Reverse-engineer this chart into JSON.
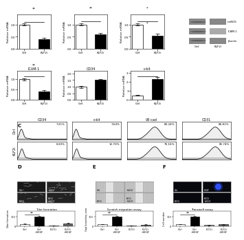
{
  "bar_charts_top": [
    {
      "ylabel": "Relative mRNA",
      "categories": [
        "Ctrl",
        "KLF2i"
      ],
      "values": [
        1.0,
        0.4
      ],
      "errors": [
        0.05,
        0.05
      ],
      "colors": [
        "white",
        "black"
      ],
      "sig": "**",
      "ylim": [
        0,
        1.4
      ]
    },
    {
      "ylabel": "Relative mRNA",
      "categories": [
        "Ctrl",
        "KLF2i"
      ],
      "values": [
        1.0,
        0.6
      ],
      "errors": [
        0.05,
        0.06
      ],
      "colors": [
        "white",
        "black"
      ],
      "sig": "**",
      "ylim": [
        0,
        1.4
      ]
    },
    {
      "ylabel": "Relative mRNA",
      "categories": [
        "Ctrl",
        "KLF2i"
      ],
      "values": [
        1.0,
        0.55
      ],
      "errors": [
        0.05,
        0.06
      ],
      "colors": [
        "white",
        "black"
      ],
      "sig": "*",
      "ylim": [
        0,
        1.4
      ]
    }
  ],
  "bar_charts_mid": [
    {
      "title": "ICAM-1",
      "ylabel": "Relative mRNA",
      "categories": [
        "Ctrl",
        "KLF2i"
      ],
      "values": [
        1.0,
        0.4
      ],
      "errors": [
        0.05,
        0.06
      ],
      "colors": [
        "white",
        "black"
      ],
      "sig": "**",
      "ylim": [
        0,
        1.4
      ]
    },
    {
      "title": "CD34",
      "ylabel": "Relative mRNA",
      "categories": [
        "Ctrl",
        "KLF2i"
      ],
      "values": [
        1.0,
        1.5
      ],
      "errors": [
        0.08,
        0.1
      ],
      "colors": [
        "white",
        "black"
      ],
      "sig": "",
      "ylim": [
        0,
        2.2
      ]
    },
    {
      "title": "c-kit",
      "ylabel": "Relative mRNA",
      "categories": [
        "Ctrl",
        "KLF2i"
      ],
      "values": [
        0.5,
        2.3
      ],
      "errors": [
        0.06,
        0.2
      ],
      "colors": [
        "white",
        "black"
      ],
      "sig": "*",
      "ylim": [
        0,
        3.2
      ]
    }
  ],
  "flow_labels_ctrl": [
    "7.21%",
    "7.64%",
    "80.24%",
    "85.81%"
  ],
  "flow_labels_klf2i": [
    "8.20%",
    "12.70%",
    "75.16%",
    "81.74%"
  ],
  "flow_markers": [
    "CD34",
    "c-kit",
    "VE-cad",
    "CD31"
  ],
  "flow_row_labels": [
    "Ctrl",
    "KLF2i"
  ],
  "western_labels": [
    "t-eNOS",
    "ICAM-1",
    "β-actin"
  ],
  "western_col_labels": [
    "Ctrl",
    "KLF2i"
  ],
  "tube_bars": {
    "title": "Tube formation",
    "ylabel": "Tube formation",
    "categories": [
      "Ctrl",
      "Ctrl\n+VEGF",
      "KLF2i",
      "KLF2i\n+VEGF"
    ],
    "values": [
      20,
      100,
      5,
      28
    ],
    "errors": [
      3,
      8,
      2,
      5
    ],
    "colors": [
      "white",
      "black",
      "#aaaaaa",
      "#666666"
    ]
  },
  "scratch_bars": {
    "title": "Scratch migration assay",
    "ylabel": "Gap boundary area",
    "categories": [
      "Ctrl",
      "Ctrl\n+VEGF",
      "KLF2i",
      "KLF2i\n+VEGF"
    ],
    "values": [
      18,
      100,
      4,
      12
    ],
    "errors": [
      3,
      8,
      1,
      3
    ],
    "colors": [
      "white",
      "black",
      "#aaaaaa",
      "#666666"
    ]
  },
  "transwell_bars": {
    "title": "Transwell assay",
    "ylabel": "Cell number",
    "categories": [
      "Ctrl",
      "Ctrl\n+VEGF",
      "KLF2i",
      "KLF2i\n+VEGF"
    ],
    "values": [
      18,
      100,
      8,
      18
    ],
    "errors": [
      3,
      7,
      2,
      4
    ],
    "colors": [
      "white",
      "black",
      "#aaaaaa",
      "#666666"
    ]
  }
}
